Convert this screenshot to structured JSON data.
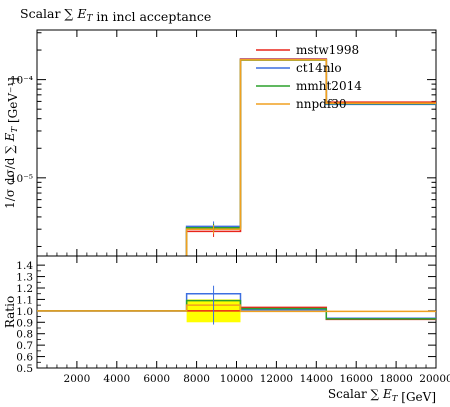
{
  "chart_data": [
    {
      "type": "line",
      "title": "Scalar ∑ E_T in incl acceptance",
      "ylabel": "1/σ dσ/d ∑ E_T [GeV⁻¹]",
      "xlabel": "",
      "ylog": true,
      "xlim": [
        0,
        20000
      ],
      "ylim": [
        1.6e-06,
        0.00032
      ],
      "bin_edges": [
        7500,
        10200,
        14500,
        20000
      ],
      "y_ticks": [
        {
          "value": 1e-05,
          "label": "10⁻⁵"
        },
        {
          "value": 0.0001,
          "label": "10⁻⁴"
        }
      ],
      "legend_position": "top-right",
      "series": [
        {
          "name": "mstw1998",
          "color": "#e8251a",
          "values": [
            2.85e-06,
            0.000162,
            5.9e-05
          ],
          "error": [
            3.5e-07,
            null,
            null
          ]
        },
        {
          "name": "ct14nlo",
          "color": "#3d6fe0",
          "values": [
            3.2e-06,
            0.00016,
            5.6e-05
          ],
          "error": [
            4e-07,
            null,
            null
          ]
        },
        {
          "name": "mmht2014",
          "color": "#2ca02c",
          "values": [
            3.1e-06,
            0.000158,
            5.7e-05
          ],
          "error": [
            3e-07,
            null,
            null
          ]
        },
        {
          "name": "nnpdf30",
          "color": "#f0a020",
          "values": [
            3e-06,
            0.000159,
            5.75e-05
          ],
          "error": [
            3e-07,
            null,
            null
          ]
        }
      ]
    },
    {
      "type": "line",
      "title": "",
      "xlabel": "Scalar ∑ E_T [GeV]",
      "ylabel": "Ratio",
      "xlim": [
        0,
        20000
      ],
      "ylim": [
        0.5,
        1.48
      ],
      "x_ticks": [
        2000,
        4000,
        6000,
        8000,
        10000,
        12000,
        14000,
        16000,
        18000,
        20000
      ],
      "y_ticks": [
        0.5,
        0.6,
        0.7,
        0.8,
        0.9,
        1.0,
        1.1,
        1.2,
        1.3,
        1.4
      ],
      "reference_line": 1.0,
      "band_color": "#ffff00",
      "band": {
        "edges": [
          7500,
          10200
        ],
        "low": 0.9,
        "high": 1.1
      },
      "error_bar": {
        "x": 8850,
        "low": 0.88,
        "high": 1.22,
        "color": "#3d6fe0"
      },
      "bin_edges": [
        0,
        7500,
        10200,
        14500,
        20000
      ],
      "series": [
        {
          "name": "mstw1998",
          "color": "#e8251a",
          "values": [
            1.0,
            1.0,
            1.03,
            0.925
          ]
        },
        {
          "name": "ct14nlo",
          "color": "#3d6fe0",
          "values": [
            1.0,
            1.15,
            1.01,
            0.935
          ]
        },
        {
          "name": "mmht2014",
          "color": "#2ca02c",
          "values": [
            1.0,
            1.09,
            1.02,
            0.93
          ]
        },
        {
          "name": "nnpdf30",
          "color": "#f0a020",
          "values": [
            1.0,
            1.05,
            0.995,
            0.995
          ]
        }
      ]
    }
  ]
}
